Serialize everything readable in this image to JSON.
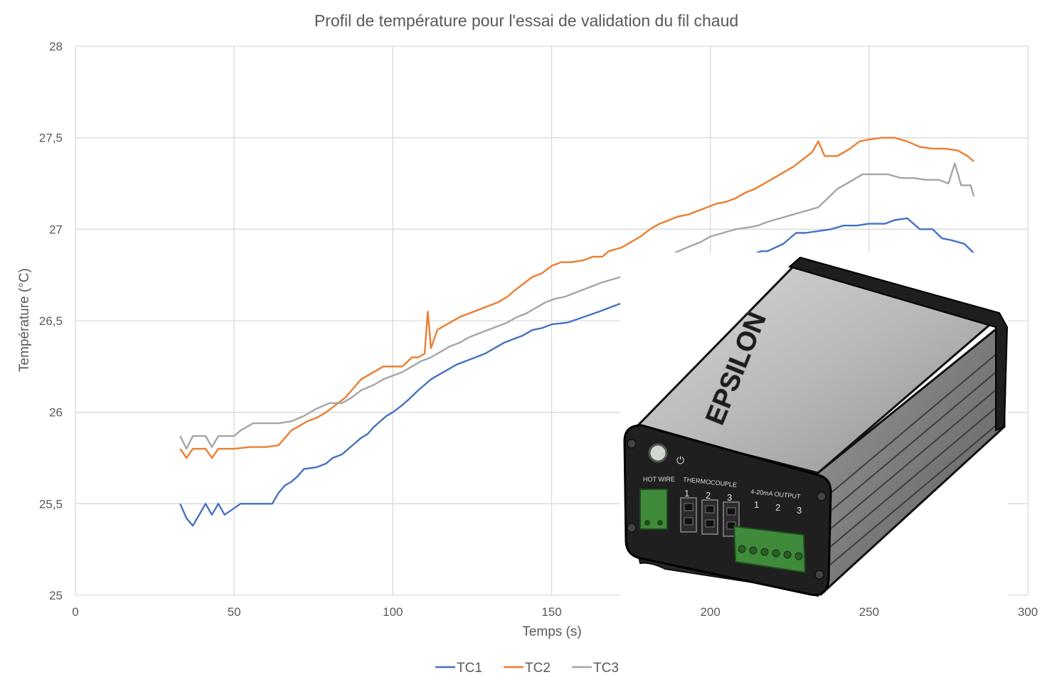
{
  "chart_data": {
    "type": "line",
    "title": "Profil de température pour l'essai de validation du fil chaud",
    "xlabel": "Temps (s)",
    "ylabel": "Température (°C)",
    "xlim": [
      0,
      300
    ],
    "ylim": [
      25,
      28
    ],
    "x_ticks": [
      "0",
      "50",
      "100",
      "150",
      "200",
      "250",
      "300"
    ],
    "y_ticks": [
      "25",
      "25,5",
      "26",
      "26,5",
      "27",
      "27,5",
      "28"
    ],
    "x_tick_values": [
      0,
      50,
      100,
      150,
      200,
      250,
      300
    ],
    "y_tick_values": [
      25,
      25.5,
      26,
      26.5,
      27,
      27.5,
      28
    ],
    "grid": true,
    "legend_position": "bottom",
    "series": [
      {
        "name": "TC1",
        "color": "#4472C4",
        "points": [
          [
            33,
            25.5
          ],
          [
            35,
            25.42
          ],
          [
            37,
            25.38
          ],
          [
            39,
            25.44
          ],
          [
            41,
            25.5
          ],
          [
            43,
            25.44
          ],
          [
            45,
            25.5
          ],
          [
            47,
            25.44
          ],
          [
            52,
            25.5
          ],
          [
            58,
            25.5
          ],
          [
            62,
            25.5
          ],
          [
            64,
            25.56
          ],
          [
            66,
            25.6
          ],
          [
            68,
            25.62
          ],
          [
            70,
            25.65
          ],
          [
            72,
            25.69
          ],
          [
            76,
            25.7
          ],
          [
            79,
            25.72
          ],
          [
            81,
            25.75
          ],
          [
            84,
            25.77
          ],
          [
            86,
            25.8
          ],
          [
            88,
            25.83
          ],
          [
            90,
            25.86
          ],
          [
            92,
            25.88
          ],
          [
            94,
            25.92
          ],
          [
            96,
            25.95
          ],
          [
            98,
            25.98
          ],
          [
            100,
            26.0
          ],
          [
            103,
            26.04
          ],
          [
            105,
            26.07
          ],
          [
            108,
            26.12
          ],
          [
            110,
            26.15
          ],
          [
            112,
            26.18
          ],
          [
            115,
            26.21
          ],
          [
            118,
            26.24
          ],
          [
            120,
            26.26
          ],
          [
            123,
            26.28
          ],
          [
            126,
            26.3
          ],
          [
            129,
            26.32
          ],
          [
            132,
            26.35
          ],
          [
            135,
            26.38
          ],
          [
            138,
            26.4
          ],
          [
            141,
            26.42
          ],
          [
            144,
            26.45
          ],
          [
            147,
            26.46
          ],
          [
            150,
            26.48
          ],
          [
            155,
            26.49
          ],
          [
            160,
            26.52
          ],
          [
            165,
            26.55
          ],
          [
            168,
            26.57
          ],
          [
            216,
            26.88
          ],
          [
            218,
            26.88
          ],
          [
            223,
            26.92
          ],
          [
            227,
            26.98
          ],
          [
            230,
            26.98
          ],
          [
            234,
            26.99
          ],
          [
            238,
            27.0
          ],
          [
            242,
            27.02
          ],
          [
            246,
            27.02
          ],
          [
            250,
            27.03
          ],
          [
            255,
            27.03
          ],
          [
            258,
            27.05
          ],
          [
            262,
            27.06
          ],
          [
            266,
            27.0
          ],
          [
            270,
            27.0
          ],
          [
            273,
            26.95
          ],
          [
            276,
            26.94
          ],
          [
            280,
            26.92
          ],
          [
            283,
            26.87
          ]
        ]
      },
      {
        "name": "TC2",
        "color": "#ED7D31",
        "points": [
          [
            33,
            25.8
          ],
          [
            35,
            25.75
          ],
          [
            37,
            25.8
          ],
          [
            41,
            25.8
          ],
          [
            43,
            25.75
          ],
          [
            45,
            25.8
          ],
          [
            50,
            25.8
          ],
          [
            55,
            25.81
          ],
          [
            60,
            25.81
          ],
          [
            64,
            25.82
          ],
          [
            66,
            25.86
          ],
          [
            68,
            25.9
          ],
          [
            70,
            25.92
          ],
          [
            73,
            25.95
          ],
          [
            76,
            25.97
          ],
          [
            79,
            26.0
          ],
          [
            82,
            26.04
          ],
          [
            85,
            26.08
          ],
          [
            88,
            26.14
          ],
          [
            90,
            26.18
          ],
          [
            94,
            26.22
          ],
          [
            97,
            26.25
          ],
          [
            100,
            26.25
          ],
          [
            103,
            26.25
          ],
          [
            106,
            26.3
          ],
          [
            108,
            26.3
          ],
          [
            110,
            26.32
          ],
          [
            111,
            26.55
          ],
          [
            112,
            26.35
          ],
          [
            114,
            26.45
          ],
          [
            116,
            26.47
          ],
          [
            118,
            26.49
          ],
          [
            121,
            26.52
          ],
          [
            124,
            26.54
          ],
          [
            127,
            26.56
          ],
          [
            130,
            26.58
          ],
          [
            133,
            26.6
          ],
          [
            136,
            26.63
          ],
          [
            138,
            26.66
          ],
          [
            141,
            26.7
          ],
          [
            144,
            26.74
          ],
          [
            147,
            26.76
          ],
          [
            150,
            26.8
          ],
          [
            153,
            26.82
          ],
          [
            156,
            26.82
          ],
          [
            160,
            26.83
          ],
          [
            163,
            26.85
          ],
          [
            166,
            26.85
          ],
          [
            168,
            26.88
          ],
          [
            172,
            26.9
          ],
          [
            175,
            26.93
          ],
          [
            178,
            26.96
          ],
          [
            181,
            27.0
          ],
          [
            184,
            27.03
          ],
          [
            187,
            27.05
          ],
          [
            190,
            27.07
          ],
          [
            193,
            27.08
          ],
          [
            196,
            27.1
          ],
          [
            199,
            27.12
          ],
          [
            202,
            27.14
          ],
          [
            205,
            27.15
          ],
          [
            208,
            27.17
          ],
          [
            211,
            27.2
          ],
          [
            214,
            27.22
          ],
          [
            217,
            27.25
          ],
          [
            220,
            27.28
          ],
          [
            223,
            27.31
          ],
          [
            226,
            27.34
          ],
          [
            229,
            27.38
          ],
          [
            232,
            27.42
          ],
          [
            234,
            27.48
          ],
          [
            236,
            27.4
          ],
          [
            240,
            27.4
          ],
          [
            244,
            27.44
          ],
          [
            247,
            27.48
          ],
          [
            250,
            27.49
          ],
          [
            254,
            27.5
          ],
          [
            258,
            27.5
          ],
          [
            262,
            27.48
          ],
          [
            266,
            27.45
          ],
          [
            270,
            27.44
          ],
          [
            274,
            27.44
          ],
          [
            278,
            27.43
          ],
          [
            281,
            27.4
          ],
          [
            283,
            27.37
          ]
        ]
      },
      {
        "name": "TC3",
        "color": "#A5A5A5",
        "points": [
          [
            33,
            25.87
          ],
          [
            35,
            25.8
          ],
          [
            37,
            25.87
          ],
          [
            41,
            25.87
          ],
          [
            43,
            25.81
          ],
          [
            45,
            25.87
          ],
          [
            50,
            25.87
          ],
          [
            52,
            25.9
          ],
          [
            56,
            25.94
          ],
          [
            60,
            25.94
          ],
          [
            64,
            25.94
          ],
          [
            68,
            25.95
          ],
          [
            72,
            25.98
          ],
          [
            76,
            26.02
          ],
          [
            80,
            26.05
          ],
          [
            84,
            26.05
          ],
          [
            87,
            26.08
          ],
          [
            90,
            26.12
          ],
          [
            94,
            26.15
          ],
          [
            97,
            26.18
          ],
          [
            100,
            26.2
          ],
          [
            103,
            26.22
          ],
          [
            106,
            26.25
          ],
          [
            109,
            26.28
          ],
          [
            112,
            26.3
          ],
          [
            115,
            26.33
          ],
          [
            118,
            26.36
          ],
          [
            121,
            26.38
          ],
          [
            124,
            26.41
          ],
          [
            127,
            26.43
          ],
          [
            130,
            26.45
          ],
          [
            133,
            26.47
          ],
          [
            136,
            26.49
          ],
          [
            139,
            26.52
          ],
          [
            142,
            26.54
          ],
          [
            145,
            26.57
          ],
          [
            148,
            26.6
          ],
          [
            151,
            26.62
          ],
          [
            154,
            26.63
          ],
          [
            157,
            26.65
          ],
          [
            160,
            26.67
          ],
          [
            163,
            26.69
          ],
          [
            166,
            26.71
          ],
          [
            168,
            26.72
          ],
          [
            172,
            26.74
          ],
          [
            186,
            26.85
          ],
          [
            190,
            26.88
          ],
          [
            194,
            26.91
          ],
          [
            197,
            26.93
          ],
          [
            200,
            26.96
          ],
          [
            204,
            26.98
          ],
          [
            208,
            27.0
          ],
          [
            212,
            27.01
          ],
          [
            215,
            27.02
          ],
          [
            218,
            27.04
          ],
          [
            222,
            27.06
          ],
          [
            226,
            27.08
          ],
          [
            230,
            27.1
          ],
          [
            234,
            27.12
          ],
          [
            237,
            27.17
          ],
          [
            240,
            27.22
          ],
          [
            244,
            27.26
          ],
          [
            248,
            27.3
          ],
          [
            252,
            27.3
          ],
          [
            256,
            27.3
          ],
          [
            260,
            27.28
          ],
          [
            264,
            27.28
          ],
          [
            268,
            27.27
          ],
          [
            272,
            27.27
          ],
          [
            275,
            27.25
          ],
          [
            277,
            27.36
          ],
          [
            279,
            27.24
          ],
          [
            282,
            27.24
          ],
          [
            283,
            27.18
          ]
        ]
      }
    ]
  },
  "device": {
    "brand": "EPSILON",
    "hot_wire_label": "HOT WIRE",
    "thermocouple_label": "THERMOCOUPLE",
    "thermocouple_numbers": [
      "1",
      "2",
      "3"
    ],
    "output_label": "4-20mA OUTPUT",
    "output_numbers": [
      "1",
      "2",
      "3"
    ],
    "power_symbol": "⏻"
  }
}
